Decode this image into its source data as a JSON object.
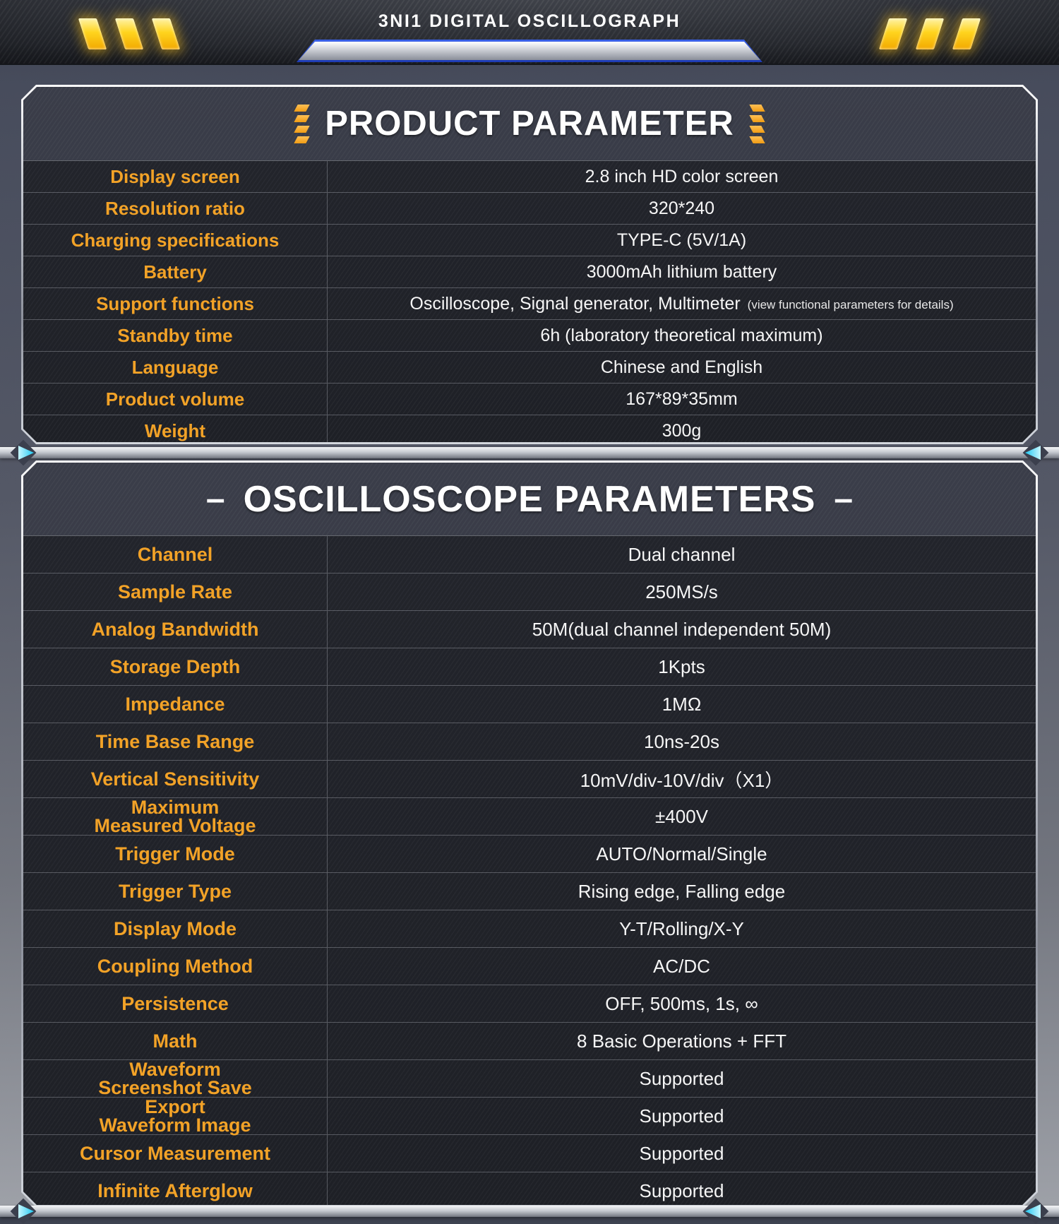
{
  "header": {
    "title": "3NI1 DIGITAL OSCILLOGRAPH"
  },
  "product_panel": {
    "title": "PRODUCT PARAMETER",
    "rows": [
      {
        "label": "Display screen",
        "value": "2.8 inch HD color screen"
      },
      {
        "label": "Resolution ratio",
        "value": "320*240"
      },
      {
        "label": "Charging specifications",
        "value": "TYPE-C (5V/1A)"
      },
      {
        "label": "Battery",
        "value": "3000mAh lithium battery"
      },
      {
        "label": "Support functions",
        "value": "Oscilloscope, Signal generator, Multimeter",
        "note": "(view functional parameters for details)"
      },
      {
        "label": "Standby time",
        "value": "6h (laboratory theoretical maximum)"
      },
      {
        "label": "Language",
        "value": "Chinese and English"
      },
      {
        "label": "Product volume",
        "value": "167*89*35mm"
      },
      {
        "label": "Weight",
        "value": "300g"
      }
    ]
  },
  "oscilloscope_panel": {
    "title": "OSCILLOSCOPE PARAMETERS",
    "dash": "–",
    "rows": [
      {
        "label": "Channel",
        "value": "Dual channel"
      },
      {
        "label": "Sample Rate",
        "value": "250MS/s"
      },
      {
        "label": "Analog Bandwidth",
        "value": "50M(dual channel independent 50M)"
      },
      {
        "label": "Storage Depth",
        "value": "1Kpts"
      },
      {
        "label": "Impedance",
        "value": "1MΩ"
      },
      {
        "label": "Time Base Range",
        "value": "10ns-20s"
      },
      {
        "label": "Vertical Sensitivity",
        "value": "10mV/div-10V/div（X1）"
      },
      {
        "label": "Maximum\nMeasured Voltage",
        "value": "±400V"
      },
      {
        "label": "Trigger Mode",
        "value": "AUTO/Normal/Single"
      },
      {
        "label": "Trigger Type",
        "value": "Rising edge, Falling edge"
      },
      {
        "label": "Display Mode",
        "value": "Y-T/Rolling/X-Y"
      },
      {
        "label": "Coupling Method",
        "value": "AC/DC"
      },
      {
        "label": "Persistence",
        "value": "OFF, 500ms, 1s, ∞"
      },
      {
        "label": "Math",
        "value": "8 Basic Operations + FFT"
      },
      {
        "label": "Waveform\nScreenshot Save",
        "value": "Supported"
      },
      {
        "label": "Export\nWaveform Image",
        "value": "Supported"
      },
      {
        "label": "Cursor Measurement",
        "value": "Supported"
      },
      {
        "label": "Infinite Afterglow",
        "value": "Supported"
      }
    ]
  },
  "colors": {
    "accent_orange": "#F2A227",
    "slash_yellow": "#FFD41E",
    "cyan_arrow": "#1FC9F2",
    "blue_bar": "#2A4FD6",
    "panel_dark": "#22242B"
  }
}
